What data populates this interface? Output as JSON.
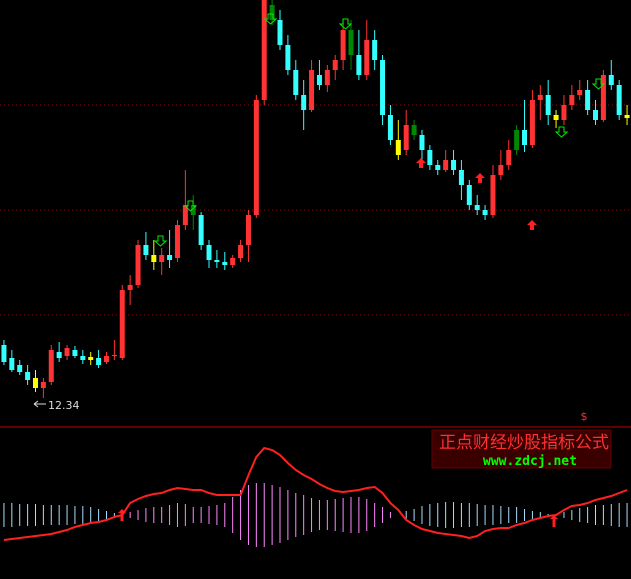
{
  "chart_data": [
    {
      "type": "candlestick",
      "open": [
        13.4,
        13.14,
        13.0,
        12.86,
        12.74,
        12.54,
        12.66,
        13.26,
        13.18,
        13.3,
        13.18,
        13.1,
        13.14,
        13.06,
        13.18,
        13.14,
        14.5,
        14.6,
        15.4,
        15.2,
        15.06,
        15.2,
        15.14,
        15.8,
        16.2,
        16.0,
        15.4,
        15.1,
        15.06,
        15.0,
        15.14,
        15.4,
        16.0,
        18.3,
        20.2,
        19.9,
        19.4,
        18.9,
        18.4,
        18.1,
        18.8,
        18.6,
        18.9,
        19.1,
        19.7,
        19.2,
        18.8,
        19.5,
        19.1,
        18.0,
        17.5,
        17.3,
        17.8,
        17.6,
        17.3,
        17.0,
        16.9,
        17.1,
        16.9,
        16.6,
        16.2,
        16.1,
        16.0,
        16.8,
        17.0,
        17.3,
        17.7,
        17.4,
        18.3,
        18.4,
        18.0,
        17.9,
        18.2,
        18.4,
        18.5,
        18.1,
        17.9,
        18.8,
        18.6,
        18.0
      ],
      "high": [
        13.5,
        13.3,
        13.1,
        13.0,
        12.9,
        12.74,
        13.4,
        13.46,
        13.4,
        13.38,
        13.3,
        13.26,
        13.3,
        13.26,
        13.5,
        14.6,
        14.8,
        15.5,
        15.66,
        15.5,
        15.34,
        15.7,
        15.9,
        16.9,
        16.4,
        16.06,
        15.5,
        15.3,
        15.26,
        15.2,
        15.5,
        16.1,
        18.4,
        20.3,
        20.3,
        20.1,
        19.6,
        19.1,
        18.7,
        19.1,
        19.1,
        19.0,
        19.2,
        19.9,
        19.9,
        19.7,
        19.9,
        19.7,
        19.2,
        18.2,
        17.9,
        18.1,
        17.9,
        17.7,
        17.4,
        17.1,
        17.3,
        17.3,
        17.1,
        16.7,
        16.4,
        16.2,
        17.0,
        17.3,
        17.5,
        17.8,
        18.3,
        18.5,
        18.6,
        18.7,
        18.1,
        18.4,
        18.6,
        18.7,
        18.7,
        18.3,
        18.9,
        19.1,
        18.7,
        18.2
      ],
      "low": [
        13.0,
        12.86,
        12.8,
        12.6,
        12.46,
        12.34,
        12.6,
        13.06,
        13.1,
        13.14,
        13.02,
        13.0,
        12.94,
        13.02,
        13.1,
        13.1,
        14.2,
        14.54,
        15.1,
        14.9,
        14.8,
        14.94,
        15.06,
        15.7,
        15.7,
        15.3,
        14.94,
        14.94,
        14.9,
        14.94,
        15.06,
        15.06,
        15.94,
        18.2,
        19.8,
        19.3,
        18.8,
        18.3,
        17.7,
        18.06,
        18.5,
        18.46,
        18.7,
        18.9,
        18.9,
        18.7,
        18.7,
        18.9,
        17.8,
        17.4,
        17.1,
        17.2,
        17.5,
        17.0,
        16.9,
        16.8,
        16.86,
        16.8,
        16.3,
        16.1,
        16.0,
        15.9,
        15.94,
        16.7,
        16.9,
        17.2,
        17.26,
        17.34,
        17.9,
        17.8,
        17.74,
        17.8,
        18.1,
        18.3,
        18.0,
        17.8,
        17.86,
        18.5,
        17.9,
        17.8
      ],
      "close": [
        13.06,
        12.9,
        12.86,
        12.7,
        12.54,
        12.66,
        13.3,
        13.14,
        13.34,
        13.18,
        13.1,
        13.16,
        13.0,
        13.18,
        13.2,
        14.5,
        14.6,
        15.4,
        15.2,
        15.06,
        15.2,
        15.1,
        15.8,
        16.2,
        16.0,
        15.4,
        15.1,
        15.06,
        15.0,
        15.14,
        15.4,
        16.0,
        18.3,
        20.3,
        19.9,
        19.4,
        18.9,
        18.4,
        18.1,
        18.9,
        18.6,
        18.9,
        19.1,
        19.7,
        19.2,
        18.8,
        19.5,
        19.1,
        18.0,
        17.5,
        17.2,
        17.8,
        17.6,
        17.3,
        17.0,
        16.9,
        17.1,
        16.9,
        16.6,
        16.2,
        16.1,
        16.0,
        16.8,
        17.0,
        17.3,
        17.7,
        17.4,
        18.3,
        18.4,
        18.0,
        17.9,
        18.2,
        18.4,
        18.5,
        18.1,
        17.9,
        18.8,
        18.6,
        18.0,
        17.94
      ],
      "colors": [
        "#33ffff",
        "#33ffff",
        "#33ffff",
        "#33ffff",
        "#ffff00",
        "#ff3333",
        "#ff3333",
        "#33ffff",
        "#ff3333",
        "#33ffff",
        "#33ffff",
        "#ffff00",
        "#33ffff",
        "#ff3333",
        "#ff3333",
        "#ff3333",
        "#ff3333",
        "#ff3333",
        "#33ffff",
        "#ffff00",
        "#ff3333",
        "#33ffff",
        "#ff3333",
        "#ff3333",
        "#008800",
        "#33ffff",
        "#33ffff",
        "#33ffff",
        "#33ffff",
        "#ff3333",
        "#ff3333",
        "#ff3333",
        "#ff3333",
        "#ff3333",
        "#008800",
        "#33ffff",
        "#33ffff",
        "#33ffff",
        "#33ffff",
        "#ff3333",
        "#33ffff",
        "#ff3333",
        "#ff3333",
        "#ff3333",
        "#008800",
        "#33ffff",
        "#ff3333",
        "#33ffff",
        "#33ffff",
        "#33ffff",
        "#ffff00",
        "#ff3333",
        "#008800",
        "#33ffff",
        "#33ffff",
        "#33ffff",
        "#ff3333",
        "#33ffff",
        "#33ffff",
        "#33ffff",
        "#33ffff",
        "#33ffff",
        "#ff3333",
        "#ff3333",
        "#ff3333",
        "#008800",
        "#33ffff",
        "#ff3333",
        "#ff3333",
        "#33ffff",
        "#ffff00",
        "#ff3333",
        "#ff3333",
        "#ff3333",
        "#33ffff",
        "#33ffff",
        "#ff3333",
        "#33ffff",
        "#33ffff",
        "#ffff00"
      ],
      "ylim": [
        11.76,
        20.3
      ],
      "gridlines": [
        14.0,
        16.1,
        18.2
      ],
      "low_label": "12.34"
    },
    {
      "type": "oscillator",
      "bars": [
        -12,
        -12,
        -11,
        -11,
        -11,
        -10,
        -10,
        -10,
        -10,
        -9,
        -9,
        -8,
        -6,
        -4,
        -2,
        0,
        3,
        5,
        7,
        8,
        8,
        10,
        12,
        11,
        8,
        8,
        9,
        10,
        12,
        18,
        25,
        30,
        32,
        32,
        30,
        28,
        25,
        22,
        20,
        17,
        15,
        15,
        16,
        17,
        18,
        18,
        16,
        12,
        8,
        3,
        0,
        -4,
        -6,
        -9,
        -11,
        -12,
        -13,
        -13,
        -12,
        -12,
        -11,
        -10,
        -10,
        -9,
        -8,
        -8,
        -6,
        -4,
        -3,
        -1,
        0,
        -3,
        -5,
        -7,
        -8,
        -10,
        -10,
        -11,
        -12,
        -12
      ],
      "line": [
        -25,
        -24,
        -23,
        -22,
        -21,
        -20,
        -19,
        -17,
        -15,
        -12,
        -10,
        -8,
        -7,
        -5,
        -2,
        0,
        12,
        16,
        19,
        21,
        22,
        25,
        27,
        26,
        25,
        25,
        22,
        20,
        20,
        20,
        20,
        40,
        58,
        67,
        65,
        60,
        52,
        45,
        40,
        36,
        31,
        27,
        24,
        23,
        24,
        25,
        27,
        28,
        22,
        12,
        5,
        -5,
        -10,
        -14,
        -16,
        -18,
        -19,
        -20,
        -21,
        -23,
        -21,
        -16,
        -14,
        -13,
        -13,
        -10,
        -8,
        -5,
        -3,
        -1,
        0,
        5,
        9,
        10,
        12,
        15,
        17,
        19,
        22,
        25
      ],
      "ylim": [
        -64,
        87
      ],
      "pos_color": "#ff88ff",
      "neg_color": "#aaddff",
      "line_color": "#ff2020",
      "watermark": {
        "symbol": "$",
        "title": "正点财经炒股指标公式",
        "url": "www.zdcj.net"
      }
    }
  ]
}
